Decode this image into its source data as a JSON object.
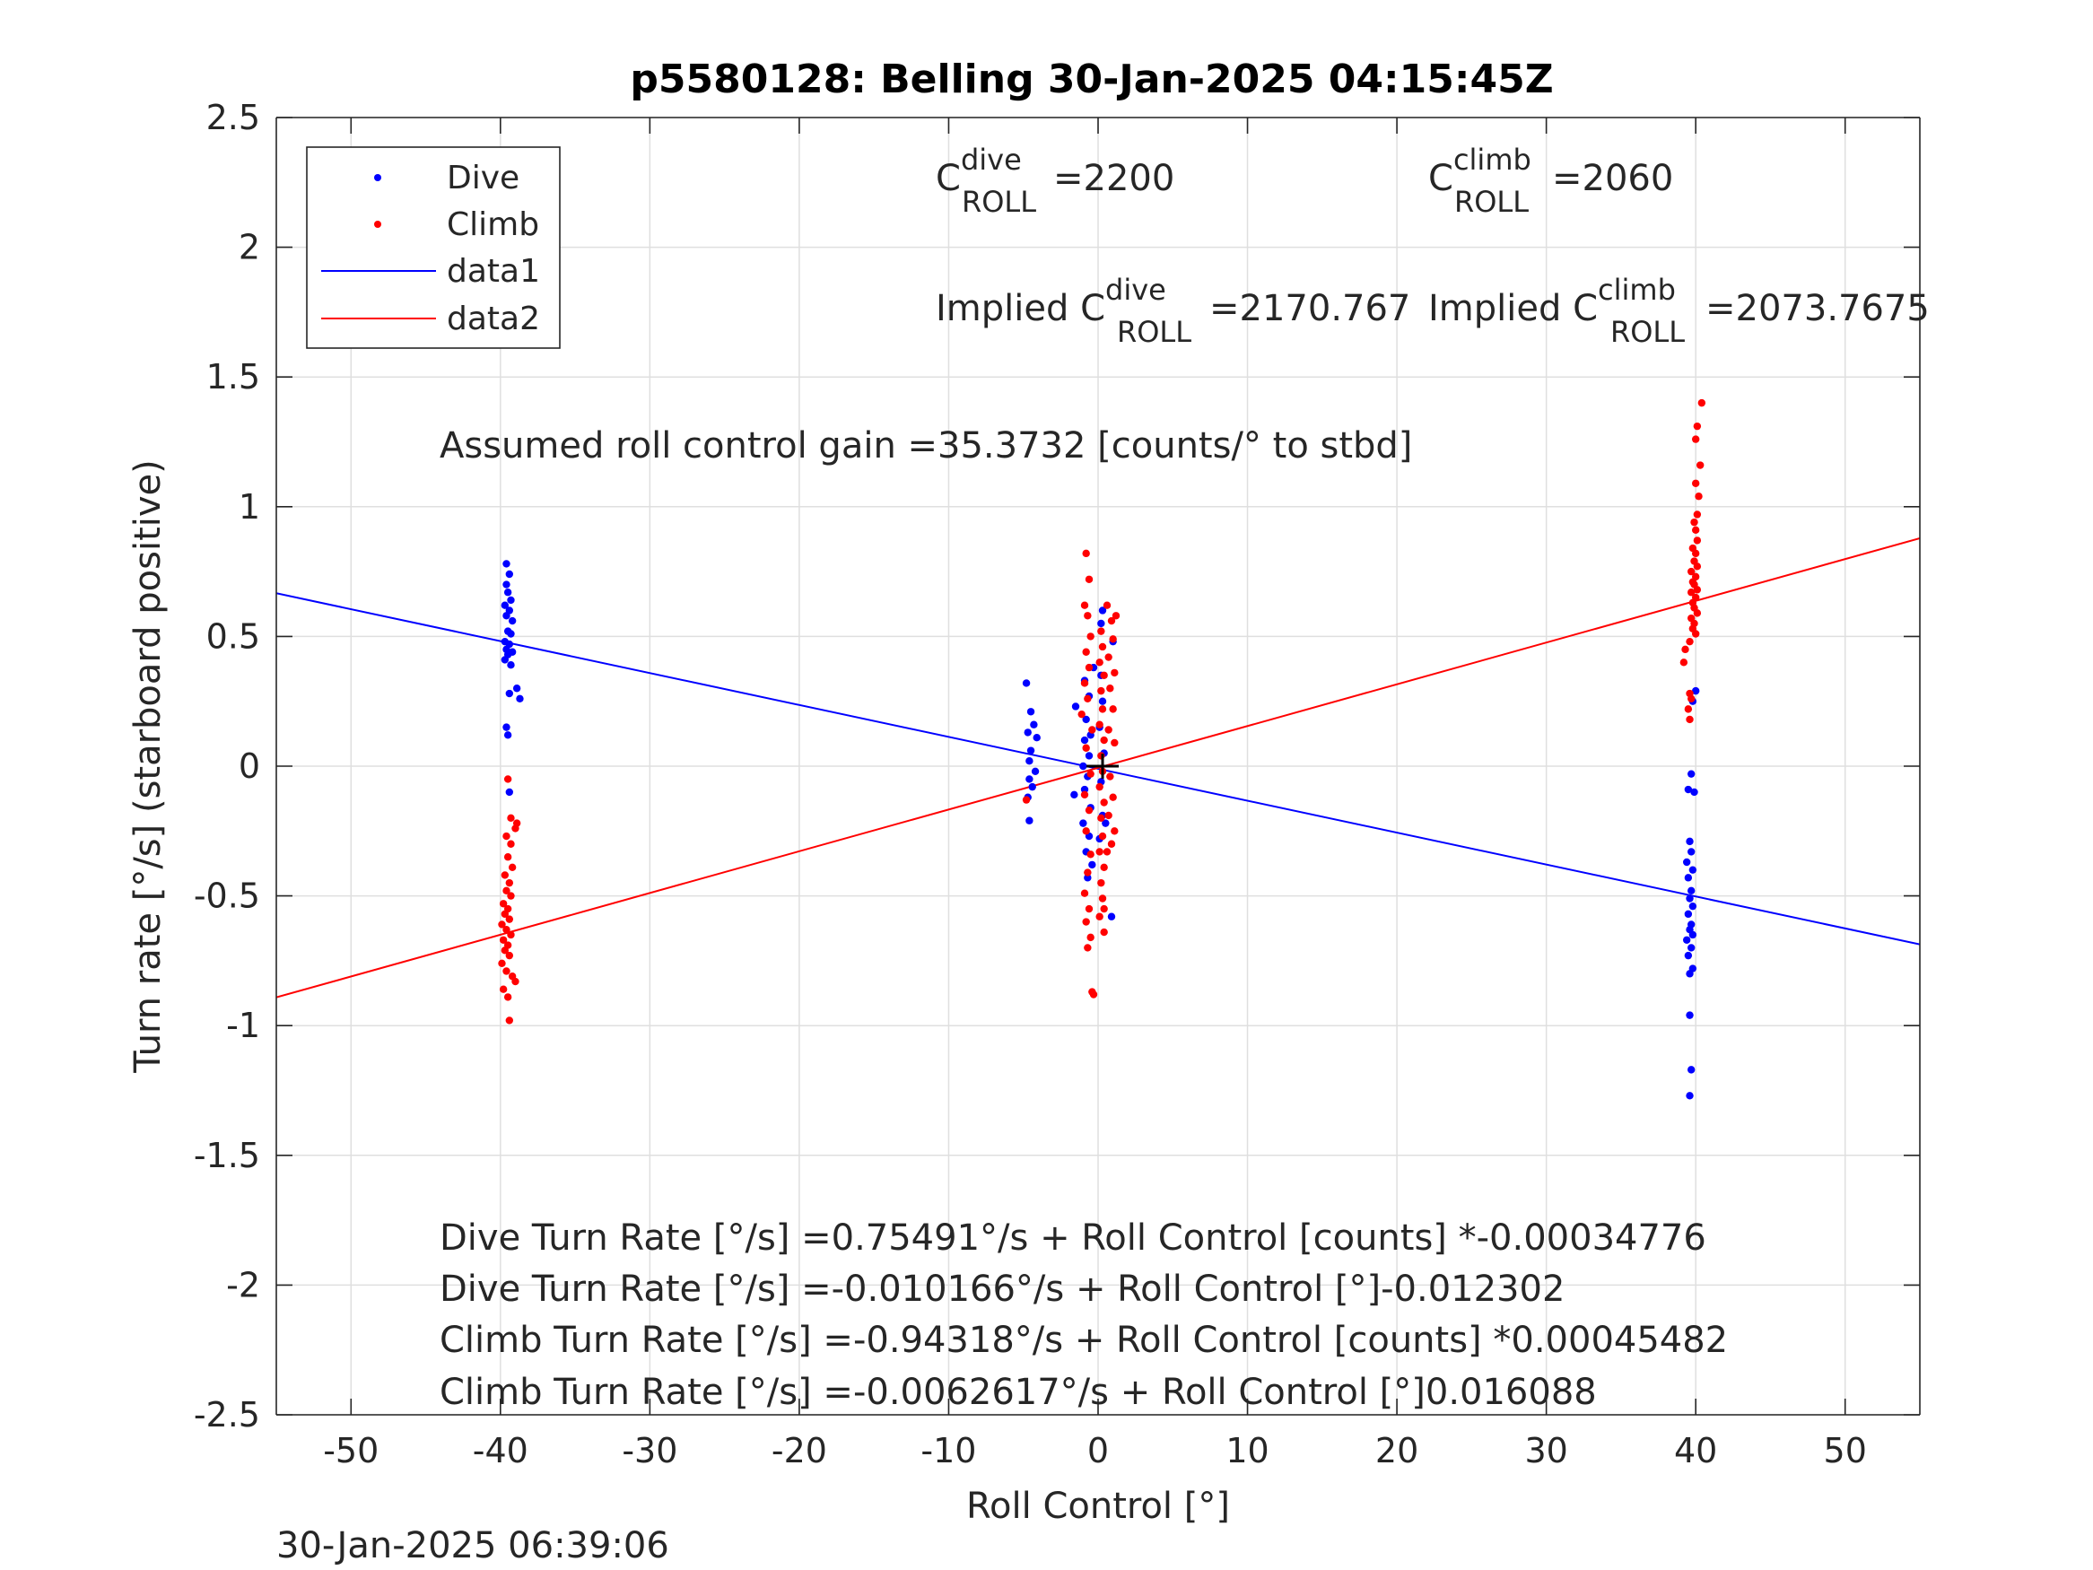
{
  "chart_data": {
    "type": "scatter",
    "title": "p5580128: Belling 30-Jan-2025 04:15:45Z",
    "xlabel": "Roll Control [°]",
    "ylabel": "Turn rate [°/s] (starboard positive)",
    "xlim": [
      -55,
      55
    ],
    "ylim": [
      -2.5,
      2.5
    ],
    "xticks": [
      -50,
      -40,
      -30,
      -20,
      -10,
      0,
      10,
      20,
      30,
      40,
      50
    ],
    "yticks": [
      -2.5,
      -2,
      -1.5,
      -1,
      -0.5,
      0,
      0.5,
      1,
      1.5,
      2,
      2.5
    ],
    "xtick_labels": [
      "-50",
      "-40",
      "-30",
      "-20",
      "-10",
      "0",
      "10",
      "20",
      "30",
      "40",
      "50"
    ],
    "ytick_labels": [
      "-2.5",
      "-2",
      "-1.5",
      "-1",
      "-0.5",
      "0",
      "0.5",
      "1",
      "1.5",
      "2",
      "2.5"
    ],
    "grid": true,
    "legend_position": "top-left",
    "legend": [
      "Dive",
      "Climb",
      "data1",
      "data2"
    ],
    "colors": {
      "dive": "#0000ff",
      "climb": "#ff0000",
      "axis": "#262626",
      "grid": "#dfdfdf"
    },
    "series": [
      {
        "name": "Dive",
        "type": "scatter",
        "points": [
          [
            -39.6,
            0.78
          ],
          [
            -39.4,
            0.74
          ],
          [
            -39.6,
            0.7
          ],
          [
            -39.5,
            0.67
          ],
          [
            -39.3,
            0.64
          ],
          [
            -39.7,
            0.62
          ],
          [
            -39.4,
            0.6
          ],
          [
            -39.6,
            0.58
          ],
          [
            -39.2,
            0.56
          ],
          [
            -39.5,
            0.52
          ],
          [
            -39.3,
            0.51
          ],
          [
            -39.7,
            0.48
          ],
          [
            -39.4,
            0.47
          ],
          [
            -39.6,
            0.45
          ],
          [
            -39.2,
            0.44
          ],
          [
            -39.5,
            0.43
          ],
          [
            -39.7,
            0.41
          ],
          [
            -39.3,
            0.39
          ],
          [
            -38.9,
            0.3
          ],
          [
            -39.4,
            0.28
          ],
          [
            -38.7,
            0.26
          ],
          [
            -39.6,
            0.15
          ],
          [
            -39.5,
            0.12
          ],
          [
            -39.4,
            -0.1
          ],
          [
            -4.8,
            0.32
          ],
          [
            -4.5,
            0.21
          ],
          [
            -4.3,
            0.16
          ],
          [
            -4.7,
            0.13
          ],
          [
            -4.1,
            0.11
          ],
          [
            -4.5,
            0.06
          ],
          [
            -4.6,
            0.02
          ],
          [
            -4.2,
            -0.02
          ],
          [
            -4.6,
            -0.05
          ],
          [
            -4.4,
            -0.08
          ],
          [
            -4.7,
            -0.12
          ],
          [
            -4.6,
            -0.21
          ],
          [
            -1.5,
            0.23
          ],
          [
            -0.9,
            0.33
          ],
          [
            -0.6,
            0.27
          ],
          [
            -0.8,
            0.18
          ],
          [
            -0.5,
            0.12
          ],
          [
            -0.9,
            0.1
          ],
          [
            -0.6,
            0.04
          ],
          [
            -1.0,
            0.0
          ],
          [
            -0.7,
            -0.04
          ],
          [
            -0.9,
            -0.09
          ],
          [
            -0.5,
            -0.16
          ],
          [
            -1.0,
            -0.22
          ],
          [
            -0.6,
            -0.27
          ],
          [
            -0.8,
            -0.33
          ],
          [
            -0.4,
            -0.38
          ],
          [
            -0.7,
            -0.43
          ],
          [
            -1.6,
            -0.11
          ],
          [
            -0.3,
            0.38
          ],
          [
            0.2,
            0.35
          ],
          [
            0.3,
            0.25
          ],
          [
            0.1,
            0.15
          ],
          [
            0.4,
            0.05
          ],
          [
            0.2,
            -0.06
          ],
          [
            0.3,
            -0.19
          ],
          [
            0.1,
            -0.28
          ],
          [
            0.2,
            0.55
          ],
          [
            0.3,
            0.6
          ],
          [
            0.9,
            -0.58
          ],
          [
            1.0,
            0.48
          ],
          [
            0.5,
            -0.22
          ],
          [
            40.0,
            0.29
          ],
          [
            39.8,
            0.25
          ],
          [
            39.7,
            -0.03
          ],
          [
            39.5,
            -0.09
          ],
          [
            39.9,
            -0.1
          ],
          [
            39.6,
            -0.29
          ],
          [
            39.7,
            -0.33
          ],
          [
            39.4,
            -0.37
          ],
          [
            39.8,
            -0.4
          ],
          [
            39.5,
            -0.43
          ],
          [
            39.7,
            -0.48
          ],
          [
            39.6,
            -0.51
          ],
          [
            39.8,
            -0.54
          ],
          [
            39.5,
            -0.57
          ],
          [
            39.7,
            -0.61
          ],
          [
            39.6,
            -0.63
          ],
          [
            39.8,
            -0.65
          ],
          [
            39.4,
            -0.67
          ],
          [
            39.7,
            -0.7
          ],
          [
            39.5,
            -0.73
          ],
          [
            39.8,
            -0.78
          ],
          [
            39.6,
            -0.8
          ],
          [
            39.6,
            -0.96
          ],
          [
            39.7,
            -1.17
          ],
          [
            39.6,
            -1.27
          ]
        ]
      },
      {
        "name": "Climb",
        "type": "scatter",
        "points": [
          [
            -39.5,
            -0.05
          ],
          [
            -39.3,
            -0.2
          ],
          [
            -38.9,
            -0.22
          ],
          [
            -39.0,
            -0.24
          ],
          [
            -39.6,
            -0.27
          ],
          [
            -39.3,
            -0.3
          ],
          [
            -39.5,
            -0.35
          ],
          [
            -39.2,
            -0.39
          ],
          [
            -39.7,
            -0.42
          ],
          [
            -39.4,
            -0.45
          ],
          [
            -39.6,
            -0.48
          ],
          [
            -39.3,
            -0.5
          ],
          [
            -39.8,
            -0.53
          ],
          [
            -39.5,
            -0.55
          ],
          [
            -39.7,
            -0.57
          ],
          [
            -39.4,
            -0.59
          ],
          [
            -39.9,
            -0.61
          ],
          [
            -39.6,
            -0.63
          ],
          [
            -39.3,
            -0.65
          ],
          [
            -39.8,
            -0.67
          ],
          [
            -39.5,
            -0.69
          ],
          [
            -39.7,
            -0.71
          ],
          [
            -39.4,
            -0.73
          ],
          [
            -39.9,
            -0.76
          ],
          [
            -39.6,
            -0.79
          ],
          [
            -39.2,
            -0.81
          ],
          [
            -39.0,
            -0.83
          ],
          [
            -39.8,
            -0.86
          ],
          [
            -39.5,
            -0.89
          ],
          [
            -39.4,
            -0.98
          ],
          [
            -4.8,
            -0.13
          ],
          [
            -1.1,
            0.2
          ],
          [
            -0.7,
            0.58
          ],
          [
            -0.8,
            0.82
          ],
          [
            -0.6,
            0.72
          ],
          [
            -0.9,
            0.62
          ],
          [
            -0.5,
            0.5
          ],
          [
            -0.8,
            0.44
          ],
          [
            -0.6,
            0.38
          ],
          [
            -0.9,
            0.32
          ],
          [
            -0.7,
            0.26
          ],
          [
            -0.4,
            0.14
          ],
          [
            -0.8,
            0.07
          ],
          [
            -0.5,
            -0.03
          ],
          [
            -0.9,
            -0.11
          ],
          [
            -0.6,
            -0.17
          ],
          [
            -0.8,
            -0.25
          ],
          [
            -0.5,
            -0.34
          ],
          [
            -0.7,
            -0.41
          ],
          [
            -0.9,
            -0.49
          ],
          [
            -0.6,
            -0.55
          ],
          [
            -0.8,
            -0.6
          ],
          [
            -0.5,
            -0.66
          ],
          [
            -0.7,
            -0.7
          ],
          [
            -0.4,
            -0.87
          ],
          [
            -0.3,
            -0.88
          ],
          [
            0.2,
            0.52
          ],
          [
            0.3,
            0.46
          ],
          [
            0.1,
            0.4
          ],
          [
            0.4,
            0.35
          ],
          [
            0.2,
            0.29
          ],
          [
            0.3,
            0.22
          ],
          [
            0.1,
            0.16
          ],
          [
            0.4,
            0.1
          ],
          [
            0.2,
            0.04
          ],
          [
            0.3,
            -0.02
          ],
          [
            0.1,
            -0.08
          ],
          [
            0.4,
            -0.14
          ],
          [
            0.2,
            -0.2
          ],
          [
            0.3,
            -0.27
          ],
          [
            0.1,
            -0.33
          ],
          [
            0.4,
            -0.39
          ],
          [
            0.2,
            -0.45
          ],
          [
            0.3,
            -0.51
          ],
          [
            0.1,
            -0.58
          ],
          [
            0.4,
            -0.64
          ],
          [
            0.4,
            -0.55
          ],
          [
            0.6,
            0.62
          ],
          [
            0.9,
            0.56
          ],
          [
            1.2,
            0.58
          ],
          [
            1.0,
            0.49
          ],
          [
            0.7,
            0.42
          ],
          [
            1.1,
            0.36
          ],
          [
            0.8,
            0.3
          ],
          [
            1.0,
            0.22
          ],
          [
            0.7,
            0.14
          ],
          [
            1.1,
            0.09
          ],
          [
            0.8,
            -0.04
          ],
          [
            1.0,
            -0.12
          ],
          [
            0.7,
            -0.19
          ],
          [
            1.1,
            -0.25
          ],
          [
            0.9,
            -0.3
          ],
          [
            0.6,
            -0.33
          ],
          [
            40.4,
            1.4
          ],
          [
            40.1,
            1.31
          ],
          [
            40.0,
            1.26
          ],
          [
            40.3,
            1.16
          ],
          [
            40.0,
            1.09
          ],
          [
            40.2,
            1.04
          ],
          [
            40.1,
            0.97
          ],
          [
            39.9,
            0.94
          ],
          [
            40.0,
            0.91
          ],
          [
            40.1,
            0.87
          ],
          [
            39.8,
            0.84
          ],
          [
            40.0,
            0.82
          ],
          [
            39.9,
            0.79
          ],
          [
            40.1,
            0.77
          ],
          [
            39.7,
            0.75
          ],
          [
            40.0,
            0.73
          ],
          [
            39.8,
            0.71
          ],
          [
            39.9,
            0.7
          ],
          [
            40.1,
            0.68
          ],
          [
            39.7,
            0.67
          ],
          [
            40.0,
            0.65
          ],
          [
            39.8,
            0.63
          ],
          [
            39.9,
            0.61
          ],
          [
            40.1,
            0.59
          ],
          [
            39.7,
            0.57
          ],
          [
            39.9,
            0.55
          ],
          [
            39.8,
            0.53
          ],
          [
            40.0,
            0.51
          ],
          [
            39.6,
            0.48
          ],
          [
            39.3,
            0.45
          ],
          [
            39.2,
            0.4
          ],
          [
            39.6,
            0.28
          ],
          [
            39.7,
            0.26
          ],
          [
            39.5,
            0.22
          ],
          [
            39.6,
            0.18
          ]
        ]
      },
      {
        "name": "data1",
        "type": "line",
        "color": "#0000ff",
        "intercept": -0.010166,
        "slope": -0.012302
      },
      {
        "name": "data2",
        "type": "line",
        "color": "#ff0000",
        "intercept": -0.0062617,
        "slope": 0.016088
      }
    ],
    "annotations": {
      "c_dive_prefix": "C",
      "c_dive_sup": "dive",
      "c_dive_sub": "ROLL",
      "c_dive_value": "=2200",
      "c_climb_prefix": "C",
      "c_climb_sup": "climb",
      "c_climb_sub": "ROLL",
      "c_climb_value": "=2060",
      "implied_dive_prefix": "Implied C",
      "implied_dive_sup": "dive",
      "implied_dive_sub": "ROLL",
      "implied_dive_value": "=2170.767",
      "implied_climb_prefix": "Implied C",
      "implied_climb_sup": "climb",
      "implied_climb_sub": "ROLL",
      "implied_climb_value": "=2073.7675",
      "gain": "Assumed roll control gain =35.3732 [counts/° to stbd]",
      "equations": [
        "Dive Turn Rate [°/s] =0.75491°/s + Roll Control [counts] *-0.00034776",
        "Dive Turn Rate [°/s] =-0.010166°/s + Roll Control [°]-0.012302",
        "Climb Turn Rate [°/s] =-0.94318°/s + Roll Control [counts] *0.00045482",
        "Climb Turn Rate [°/s] =-0.0062617°/s + Roll Control [°]0.016088"
      ]
    },
    "timestamp": "30-Jan-2025 06:39:06"
  }
}
